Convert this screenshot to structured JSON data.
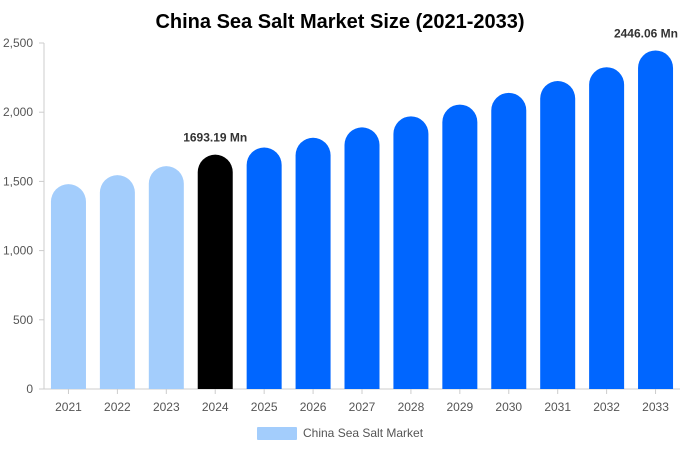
{
  "chart_data": {
    "type": "bar",
    "title": "China Sea Salt Market Size (2021-2033)",
    "xlabel": "",
    "ylabel": "",
    "categories": [
      "2021",
      "2022",
      "2023",
      "2024",
      "2025",
      "2026",
      "2027",
      "2028",
      "2029",
      "2030",
      "2031",
      "2032",
      "2033"
    ],
    "series": [
      {
        "name": "China Sea Salt Market",
        "values": [
          1480,
          1545,
          1610,
          1693.19,
          1745,
          1815,
          1890,
          1970,
          2055,
          2140,
          2225,
          2325,
          2446.06
        ]
      }
    ],
    "ylim": [
      0,
      2500
    ],
    "yticks": [
      "0",
      "500",
      "1,000",
      "1,500",
      "2,000",
      "2,500"
    ],
    "ytick_values": [
      0,
      500,
      1000,
      1500,
      2000,
      2500
    ],
    "data_labels": [
      {
        "index": 3,
        "text": "1693.19 Mn"
      },
      {
        "index": 12,
        "text": "2446.06 Mn"
      }
    ],
    "colors": {
      "historic": "#a3cdfc",
      "current": "#000000",
      "forecast": "#0066ff",
      "axis": "#cccccc"
    },
    "bar_color_groups": [
      "historic",
      "historic",
      "historic",
      "current",
      "forecast",
      "forecast",
      "forecast",
      "forecast",
      "forecast",
      "forecast",
      "forecast",
      "forecast",
      "forecast"
    ],
    "legend": {
      "position": "bottom",
      "label": "China Sea Salt Market",
      "color": "#a3cdfc"
    },
    "grid": false
  }
}
